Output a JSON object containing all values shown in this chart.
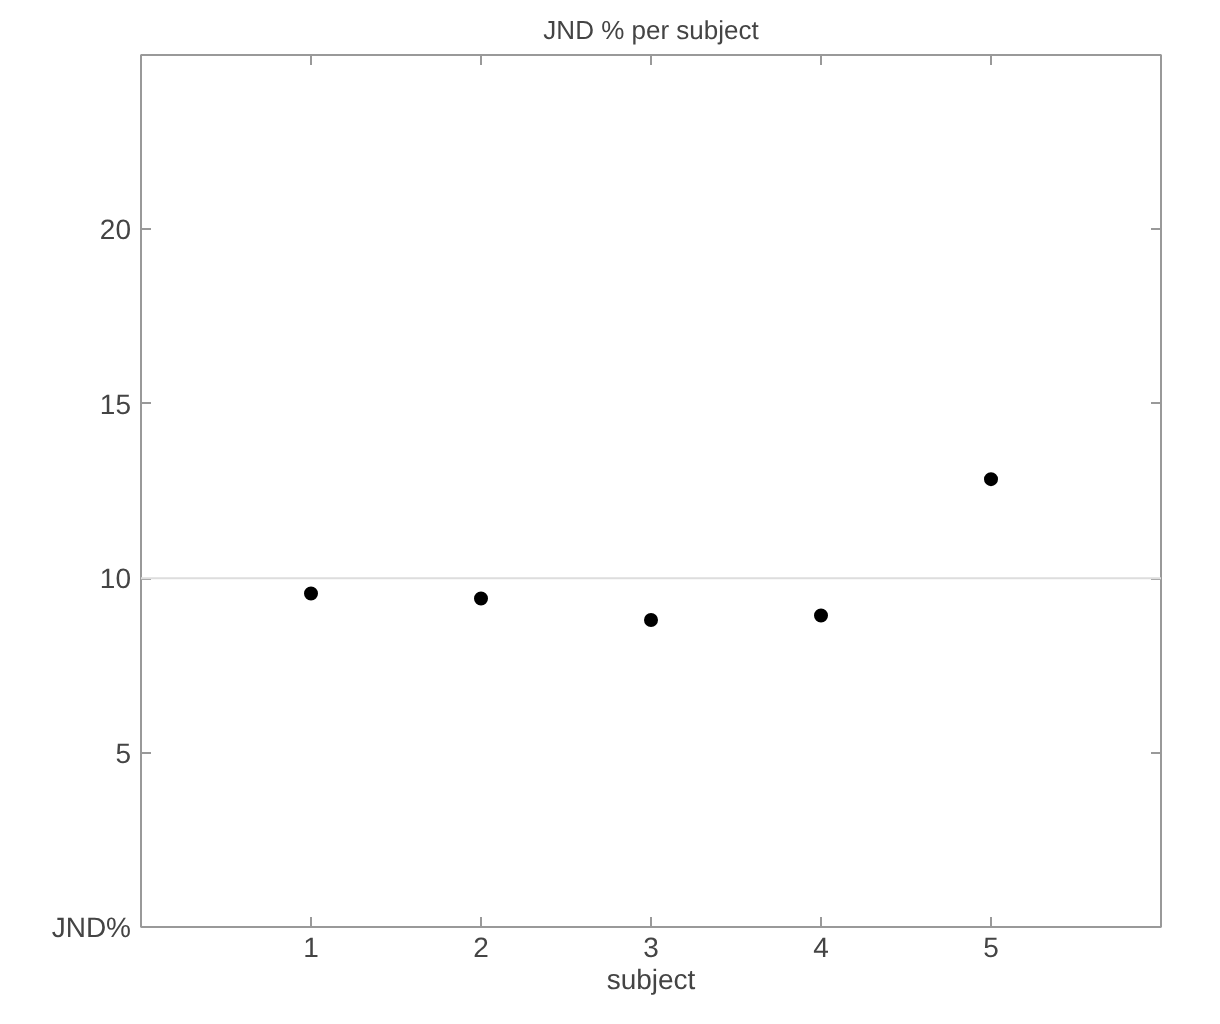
{
  "chart_data": {
    "type": "scatter",
    "title": "JND % per subject",
    "xlabel": "subject",
    "x": [
      1,
      2,
      3,
      4,
      5
    ],
    "series": [
      {
        "color": "#000000",
        "values": [
          9.56,
          9.42,
          8.8,
          8.93,
          12.84
        ]
      }
    ],
    "xlim": [
      0,
      6
    ],
    "xticks": [
      1,
      2,
      3,
      4,
      5
    ],
    "ylim": [
      0,
      25
    ],
    "yticks": [
      {
        "value": 0,
        "label": "JND%"
      },
      5,
      10,
      15,
      20
    ],
    "ref_lines": [
      {
        "axis": "y",
        "value": 10,
        "color": "#dddddd"
      }
    ],
    "marker": "circle"
  }
}
